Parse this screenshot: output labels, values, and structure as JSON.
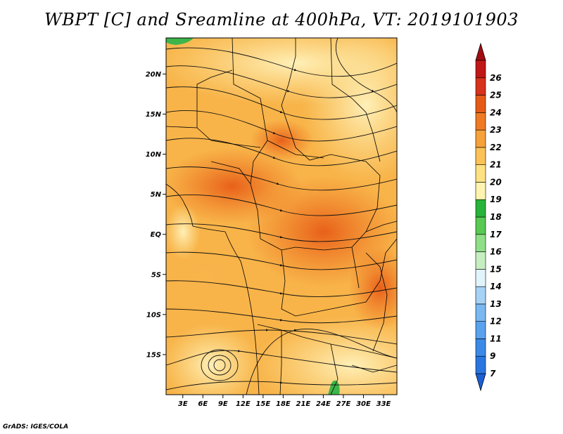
{
  "title": "WBPT [C] and Sreamline at 400hPa, VT: 2019101903",
  "credit": "GrADS: IGES/COLA",
  "map": {
    "lat_ticks": [
      {
        "value": 20,
        "label": "20N"
      },
      {
        "value": 15,
        "label": "15N"
      },
      {
        "value": 10,
        "label": "10N"
      },
      {
        "value": 5,
        "label": "5N"
      },
      {
        "value": 0,
        "label": "EQ"
      },
      {
        "value": -5,
        "label": "5S"
      },
      {
        "value": -10,
        "label": "10S"
      },
      {
        "value": -15,
        "label": "15S"
      }
    ],
    "lon_ticks": [
      {
        "value": 3,
        "label": "3E"
      },
      {
        "value": 6,
        "label": "6E"
      },
      {
        "value": 9,
        "label": "9E"
      },
      {
        "value": 12,
        "label": "12E"
      },
      {
        "value": 15,
        "label": "15E"
      },
      {
        "value": 18,
        "label": "18E"
      },
      {
        "value": 21,
        "label": "21E"
      },
      {
        "value": 24,
        "label": "24E"
      },
      {
        "value": 27,
        "label": "27E"
      },
      {
        "value": 30,
        "label": "30E"
      },
      {
        "value": 33,
        "label": "33E"
      }
    ],
    "lon_range": [
      0.5,
      35
    ],
    "lat_range": [
      -20,
      24.5
    ]
  },
  "colorbar": {
    "labels": [
      "7",
      "9",
      "11",
      "12",
      "13",
      "14",
      "15",
      "16",
      "17",
      "18",
      "19",
      "20",
      "21",
      "22",
      "23",
      "24",
      "25",
      "26"
    ],
    "colors": [
      "#1a5fd6",
      "#2a76e0",
      "#3b8ae8",
      "#5aa2ee",
      "#7ab8f2",
      "#a6d2f6",
      "#e2f4fb",
      "#c6eec0",
      "#8fde88",
      "#58c952",
      "#28b33a",
      "#fff3b0",
      "#fde183",
      "#fbc257",
      "#f6a13a",
      "#f07a23",
      "#e65a18",
      "#d6321c",
      "#c01816",
      "#a40c12"
    ]
  },
  "colors": {
    "field_low": "#fde59a",
    "field_mid": "#f8b449",
    "field_high": "#ec6a18",
    "green": "#3cb54a"
  }
}
